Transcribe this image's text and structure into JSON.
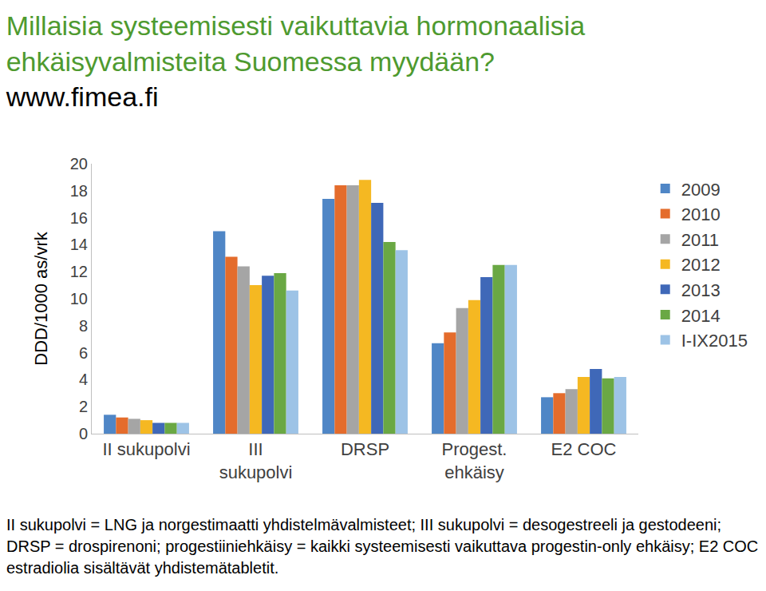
{
  "chart_data": {
    "type": "bar",
    "title": "Millaisia systeemisesti vaikuttavia hormonaalisia ehkäisyvalmisteita Suomessa myydään?",
    "subtitle": "www.fimea.fi",
    "y_label": "DDD/1000 as/vrk",
    "categories": [
      "II sukupolvi",
      "III sukupolvi",
      "DRSP",
      "Progest. ehkäisy",
      "E2 COC"
    ],
    "series": [
      {
        "name": "2009",
        "color": "#4f86c6",
        "values": [
          1.4,
          15.0,
          17.4,
          6.7,
          2.7
        ]
      },
      {
        "name": "2010",
        "color": "#e46c2c",
        "values": [
          1.2,
          13.1,
          18.4,
          7.5,
          3.0
        ]
      },
      {
        "name": "2011",
        "color": "#a5a5a5",
        "values": [
          1.1,
          12.4,
          18.4,
          9.3,
          3.3
        ]
      },
      {
        "name": "2012",
        "color": "#f5b822",
        "values": [
          1.0,
          11.0,
          18.8,
          9.9,
          4.2
        ]
      },
      {
        "name": "2013",
        "color": "#3f68b8",
        "values": [
          0.8,
          11.7,
          17.1,
          11.6,
          4.8
        ]
      },
      {
        "name": "2014",
        "color": "#6aa844",
        "values": [
          0.8,
          11.9,
          14.2,
          12.5,
          4.1
        ]
      },
      {
        "name": "I-IX2015",
        "color": "#9dc3e6",
        "values": [
          0.8,
          10.6,
          13.6,
          12.5,
          4.2
        ]
      }
    ],
    "ylim": [
      0,
      20
    ],
    "yticks": [
      0,
      2,
      4,
      6,
      8,
      10,
      12,
      14,
      16,
      18,
      20
    ],
    "grid": false,
    "legend": "right",
    "note": "II sukupolvi = LNG ja norgestimaatti yhdistelmävalmisteet; III sukupolvi = desogestreeli ja gestodeeni; DRSP = drospirenoni; progestiiniehkäisy = kaikki systeemisesti vaikuttava progestin-only ehkäisy; E2 COC estradiolia sisältävät yhdistemätabletit."
  }
}
